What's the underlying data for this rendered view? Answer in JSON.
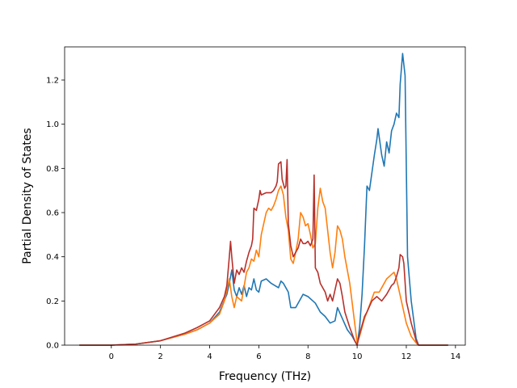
{
  "chart_data": {
    "type": "line",
    "xlabel": "Frequency (THz)",
    "ylabel": "Partial Density of States",
    "xlim": [
      -1.9,
      14.4
    ],
    "ylim": [
      0,
      1.35
    ],
    "xticks": [
      "0",
      "2",
      "4",
      "6",
      "8",
      "10",
      "12",
      "14"
    ],
    "xtick_values": [
      0,
      2,
      4,
      6,
      8,
      10,
      12,
      14
    ],
    "yticks": [
      "0.0",
      "0.2",
      "0.4",
      "0.6",
      "0.8",
      "1.0",
      "1.2"
    ],
    "ytick_values": [
      0.0,
      0.2,
      0.4,
      0.6,
      0.8,
      1.0,
      1.2
    ],
    "grid": false,
    "legend": "none",
    "series": [
      {
        "color": "#1f77b4",
        "points": [
          [
            -1.3,
            0
          ],
          [
            0,
            0
          ],
          [
            1,
            0.005
          ],
          [
            2,
            0.02
          ],
          [
            3,
            0.05
          ],
          [
            3.5,
            0.07
          ],
          [
            4,
            0.1
          ],
          [
            4.4,
            0.15
          ],
          [
            4.7,
            0.23
          ],
          [
            4.8,
            0.28
          ],
          [
            4.9,
            0.34
          ],
          [
            5.0,
            0.25
          ],
          [
            5.1,
            0.22
          ],
          [
            5.2,
            0.26
          ],
          [
            5.3,
            0.23
          ],
          [
            5.4,
            0.27
          ],
          [
            5.5,
            0.22
          ],
          [
            5.6,
            0.26
          ],
          [
            5.7,
            0.25
          ],
          [
            5.8,
            0.3
          ],
          [
            5.9,
            0.25
          ],
          [
            6.0,
            0.24
          ],
          [
            6.1,
            0.29
          ],
          [
            6.3,
            0.3
          ],
          [
            6.5,
            0.28
          ],
          [
            6.8,
            0.26
          ],
          [
            6.9,
            0.29
          ],
          [
            7.0,
            0.28
          ],
          [
            7.1,
            0.26
          ],
          [
            7.2,
            0.24
          ],
          [
            7.3,
            0.17
          ],
          [
            7.5,
            0.17
          ],
          [
            7.7,
            0.21
          ],
          [
            7.8,
            0.23
          ],
          [
            8.0,
            0.22
          ],
          [
            8.2,
            0.2
          ],
          [
            8.3,
            0.19
          ],
          [
            8.5,
            0.15
          ],
          [
            8.7,
            0.13
          ],
          [
            8.9,
            0.1
          ],
          [
            9.1,
            0.11
          ],
          [
            9.2,
            0.17
          ],
          [
            9.4,
            0.12
          ],
          [
            9.6,
            0.07
          ],
          [
            9.8,
            0.04
          ],
          [
            10.0,
            0.0
          ],
          [
            10.1,
            0.08
          ],
          [
            10.2,
            0.23
          ],
          [
            10.3,
            0.45
          ],
          [
            10.4,
            0.72
          ],
          [
            10.5,
            0.7
          ],
          [
            10.7,
            0.86
          ],
          [
            10.8,
            0.93
          ],
          [
            10.85,
            0.98
          ],
          [
            11.0,
            0.86
          ],
          [
            11.1,
            0.81
          ],
          [
            11.2,
            0.92
          ],
          [
            11.3,
            0.87
          ],
          [
            11.4,
            0.97
          ],
          [
            11.5,
            1.0
          ],
          [
            11.6,
            1.05
          ],
          [
            11.7,
            1.03
          ],
          [
            11.75,
            1.18
          ],
          [
            11.85,
            1.32
          ],
          [
            11.95,
            1.22
          ],
          [
            12.05,
            0.4
          ],
          [
            12.2,
            0.2
          ],
          [
            12.4,
            0.03
          ],
          [
            12.5,
            0.0
          ],
          [
            13.7,
            0
          ]
        ]
      },
      {
        "color": "#ff7f0e",
        "points": [
          [
            -1.3,
            0
          ],
          [
            0,
            0
          ],
          [
            1,
            0.005
          ],
          [
            2,
            0.02
          ],
          [
            3,
            0.05
          ],
          [
            3.5,
            0.07
          ],
          [
            4,
            0.1
          ],
          [
            4.4,
            0.14
          ],
          [
            4.6,
            0.2
          ],
          [
            4.8,
            0.3
          ],
          [
            4.9,
            0.22
          ],
          [
            5.0,
            0.17
          ],
          [
            5.1,
            0.22
          ],
          [
            5.3,
            0.2
          ],
          [
            5.5,
            0.33
          ],
          [
            5.6,
            0.35
          ],
          [
            5.7,
            0.39
          ],
          [
            5.8,
            0.38
          ],
          [
            5.9,
            0.43
          ],
          [
            6.0,
            0.4
          ],
          [
            6.1,
            0.5
          ],
          [
            6.2,
            0.55
          ],
          [
            6.3,
            0.6
          ],
          [
            6.4,
            0.62
          ],
          [
            6.5,
            0.61
          ],
          [
            6.6,
            0.63
          ],
          [
            6.7,
            0.66
          ],
          [
            6.8,
            0.7
          ],
          [
            6.9,
            0.72
          ],
          [
            7.0,
            0.68
          ],
          [
            7.1,
            0.58
          ],
          [
            7.2,
            0.52
          ],
          [
            7.3,
            0.39
          ],
          [
            7.4,
            0.37
          ],
          [
            7.5,
            0.42
          ],
          [
            7.6,
            0.48
          ],
          [
            7.7,
            0.6
          ],
          [
            7.8,
            0.58
          ],
          [
            7.9,
            0.54
          ],
          [
            8.0,
            0.55
          ],
          [
            8.1,
            0.5
          ],
          [
            8.2,
            0.44
          ],
          [
            8.3,
            0.46
          ],
          [
            8.4,
            0.62
          ],
          [
            8.5,
            0.71
          ],
          [
            8.6,
            0.65
          ],
          [
            8.7,
            0.62
          ],
          [
            8.8,
            0.52
          ],
          [
            8.9,
            0.42
          ],
          [
            9.0,
            0.35
          ],
          [
            9.1,
            0.42
          ],
          [
            9.2,
            0.54
          ],
          [
            9.3,
            0.52
          ],
          [
            9.4,
            0.48
          ],
          [
            9.5,
            0.4
          ],
          [
            9.7,
            0.28
          ],
          [
            9.9,
            0.1
          ],
          [
            10.0,
            0.01
          ],
          [
            10.1,
            0.04
          ],
          [
            10.3,
            0.12
          ],
          [
            10.5,
            0.18
          ],
          [
            10.7,
            0.24
          ],
          [
            10.9,
            0.24
          ],
          [
            11.0,
            0.26
          ],
          [
            11.2,
            0.3
          ],
          [
            11.5,
            0.33
          ],
          [
            11.6,
            0.3
          ],
          [
            11.8,
            0.2
          ],
          [
            12.0,
            0.1
          ],
          [
            12.2,
            0.04
          ],
          [
            12.4,
            0.01
          ],
          [
            12.5,
            0.0
          ],
          [
            13.7,
            0
          ]
        ]
      },
      {
        "color": "#b7312c",
        "points": [
          [
            -1.3,
            0
          ],
          [
            0,
            0
          ],
          [
            1,
            0.005
          ],
          [
            2,
            0.02
          ],
          [
            3,
            0.055
          ],
          [
            3.5,
            0.08
          ],
          [
            4,
            0.11
          ],
          [
            4.4,
            0.17
          ],
          [
            4.6,
            0.22
          ],
          [
            4.7,
            0.27
          ],
          [
            4.8,
            0.4
          ],
          [
            4.85,
            0.47
          ],
          [
            4.9,
            0.4
          ],
          [
            5.0,
            0.28
          ],
          [
            5.1,
            0.34
          ],
          [
            5.2,
            0.32
          ],
          [
            5.3,
            0.35
          ],
          [
            5.4,
            0.33
          ],
          [
            5.5,
            0.38
          ],
          [
            5.6,
            0.42
          ],
          [
            5.7,
            0.45
          ],
          [
            5.75,
            0.48
          ],
          [
            5.8,
            0.62
          ],
          [
            5.9,
            0.61
          ],
          [
            6.0,
            0.66
          ],
          [
            6.05,
            0.7
          ],
          [
            6.1,
            0.68
          ],
          [
            6.3,
            0.69
          ],
          [
            6.5,
            0.69
          ],
          [
            6.6,
            0.7
          ],
          [
            6.7,
            0.72
          ],
          [
            6.75,
            0.74
          ],
          [
            6.8,
            0.82
          ],
          [
            6.9,
            0.83
          ],
          [
            6.95,
            0.75
          ],
          [
            7.05,
            0.71
          ],
          [
            7.1,
            0.72
          ],
          [
            7.15,
            0.84
          ],
          [
            7.2,
            0.55
          ],
          [
            7.3,
            0.45
          ],
          [
            7.4,
            0.4
          ],
          [
            7.5,
            0.42
          ],
          [
            7.6,
            0.44
          ],
          [
            7.7,
            0.48
          ],
          [
            7.8,
            0.46
          ],
          [
            7.9,
            0.46
          ],
          [
            8.0,
            0.47
          ],
          [
            8.1,
            0.45
          ],
          [
            8.2,
            0.48
          ],
          [
            8.25,
            0.77
          ],
          [
            8.3,
            0.35
          ],
          [
            8.4,
            0.33
          ],
          [
            8.5,
            0.28
          ],
          [
            8.7,
            0.24
          ],
          [
            8.8,
            0.2
          ],
          [
            8.9,
            0.23
          ],
          [
            9.0,
            0.2
          ],
          [
            9.1,
            0.25
          ],
          [
            9.2,
            0.3
          ],
          [
            9.3,
            0.28
          ],
          [
            9.4,
            0.22
          ],
          [
            9.5,
            0.15
          ],
          [
            9.7,
            0.08
          ],
          [
            9.9,
            0.02
          ],
          [
            10.0,
            0.0
          ],
          [
            10.1,
            0.05
          ],
          [
            10.3,
            0.13
          ],
          [
            10.4,
            0.15
          ],
          [
            10.6,
            0.2
          ],
          [
            10.8,
            0.22
          ],
          [
            11.0,
            0.2
          ],
          [
            11.2,
            0.23
          ],
          [
            11.4,
            0.27
          ],
          [
            11.5,
            0.28
          ],
          [
            11.6,
            0.31
          ],
          [
            11.7,
            0.35
          ],
          [
            11.75,
            0.41
          ],
          [
            11.85,
            0.4
          ],
          [
            11.9,
            0.37
          ],
          [
            12.0,
            0.2
          ],
          [
            12.2,
            0.1
          ],
          [
            12.4,
            0.02
          ],
          [
            12.5,
            0.0
          ],
          [
            13.7,
            0
          ]
        ]
      }
    ]
  }
}
